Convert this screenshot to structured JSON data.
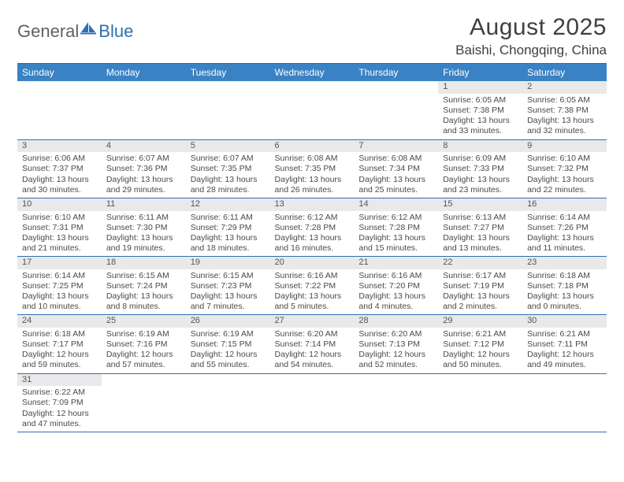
{
  "brand": {
    "part1": "General",
    "part2": "Blue"
  },
  "title": "August 2025",
  "location": "Baishi, Chongqing, China",
  "colors": {
    "header_bg": "#3a82c4",
    "header_border": "#2f6fb3",
    "daynum_bg": "#e9e9e9",
    "text": "#4a4a4a",
    "logo_gray": "#606060",
    "logo_blue": "#2f6fb3"
  },
  "dow": [
    "Sunday",
    "Monday",
    "Tuesday",
    "Wednesday",
    "Thursday",
    "Friday",
    "Saturday"
  ],
  "weeks": [
    [
      {
        "n": "",
        "l": [
          "",
          "",
          "",
          ""
        ]
      },
      {
        "n": "",
        "l": [
          "",
          "",
          "",
          ""
        ]
      },
      {
        "n": "",
        "l": [
          "",
          "",
          "",
          ""
        ]
      },
      {
        "n": "",
        "l": [
          "",
          "",
          "",
          ""
        ]
      },
      {
        "n": "",
        "l": [
          "",
          "",
          "",
          ""
        ]
      },
      {
        "n": "1",
        "l": [
          "Sunrise: 6:05 AM",
          "Sunset: 7:38 PM",
          "Daylight: 13 hours",
          "and 33 minutes."
        ]
      },
      {
        "n": "2",
        "l": [
          "Sunrise: 6:05 AM",
          "Sunset: 7:38 PM",
          "Daylight: 13 hours",
          "and 32 minutes."
        ]
      }
    ],
    [
      {
        "n": "3",
        "l": [
          "Sunrise: 6:06 AM",
          "Sunset: 7:37 PM",
          "Daylight: 13 hours",
          "and 30 minutes."
        ]
      },
      {
        "n": "4",
        "l": [
          "Sunrise: 6:07 AM",
          "Sunset: 7:36 PM",
          "Daylight: 13 hours",
          "and 29 minutes."
        ]
      },
      {
        "n": "5",
        "l": [
          "Sunrise: 6:07 AM",
          "Sunset: 7:35 PM",
          "Daylight: 13 hours",
          "and 28 minutes."
        ]
      },
      {
        "n": "6",
        "l": [
          "Sunrise: 6:08 AM",
          "Sunset: 7:35 PM",
          "Daylight: 13 hours",
          "and 26 minutes."
        ]
      },
      {
        "n": "7",
        "l": [
          "Sunrise: 6:08 AM",
          "Sunset: 7:34 PM",
          "Daylight: 13 hours",
          "and 25 minutes."
        ]
      },
      {
        "n": "8",
        "l": [
          "Sunrise: 6:09 AM",
          "Sunset: 7:33 PM",
          "Daylight: 13 hours",
          "and 23 minutes."
        ]
      },
      {
        "n": "9",
        "l": [
          "Sunrise: 6:10 AM",
          "Sunset: 7:32 PM",
          "Daylight: 13 hours",
          "and 22 minutes."
        ]
      }
    ],
    [
      {
        "n": "10",
        "l": [
          "Sunrise: 6:10 AM",
          "Sunset: 7:31 PM",
          "Daylight: 13 hours",
          "and 21 minutes."
        ]
      },
      {
        "n": "11",
        "l": [
          "Sunrise: 6:11 AM",
          "Sunset: 7:30 PM",
          "Daylight: 13 hours",
          "and 19 minutes."
        ]
      },
      {
        "n": "12",
        "l": [
          "Sunrise: 6:11 AM",
          "Sunset: 7:29 PM",
          "Daylight: 13 hours",
          "and 18 minutes."
        ]
      },
      {
        "n": "13",
        "l": [
          "Sunrise: 6:12 AM",
          "Sunset: 7:28 PM",
          "Daylight: 13 hours",
          "and 16 minutes."
        ]
      },
      {
        "n": "14",
        "l": [
          "Sunrise: 6:12 AM",
          "Sunset: 7:28 PM",
          "Daylight: 13 hours",
          "and 15 minutes."
        ]
      },
      {
        "n": "15",
        "l": [
          "Sunrise: 6:13 AM",
          "Sunset: 7:27 PM",
          "Daylight: 13 hours",
          "and 13 minutes."
        ]
      },
      {
        "n": "16",
        "l": [
          "Sunrise: 6:14 AM",
          "Sunset: 7:26 PM",
          "Daylight: 13 hours",
          "and 11 minutes."
        ]
      }
    ],
    [
      {
        "n": "17",
        "l": [
          "Sunrise: 6:14 AM",
          "Sunset: 7:25 PM",
          "Daylight: 13 hours",
          "and 10 minutes."
        ]
      },
      {
        "n": "18",
        "l": [
          "Sunrise: 6:15 AM",
          "Sunset: 7:24 PM",
          "Daylight: 13 hours",
          "and 8 minutes."
        ]
      },
      {
        "n": "19",
        "l": [
          "Sunrise: 6:15 AM",
          "Sunset: 7:23 PM",
          "Daylight: 13 hours",
          "and 7 minutes."
        ]
      },
      {
        "n": "20",
        "l": [
          "Sunrise: 6:16 AM",
          "Sunset: 7:22 PM",
          "Daylight: 13 hours",
          "and 5 minutes."
        ]
      },
      {
        "n": "21",
        "l": [
          "Sunrise: 6:16 AM",
          "Sunset: 7:20 PM",
          "Daylight: 13 hours",
          "and 4 minutes."
        ]
      },
      {
        "n": "22",
        "l": [
          "Sunrise: 6:17 AM",
          "Sunset: 7:19 PM",
          "Daylight: 13 hours",
          "and 2 minutes."
        ]
      },
      {
        "n": "23",
        "l": [
          "Sunrise: 6:18 AM",
          "Sunset: 7:18 PM",
          "Daylight: 13 hours",
          "and 0 minutes."
        ]
      }
    ],
    [
      {
        "n": "24",
        "l": [
          "Sunrise: 6:18 AM",
          "Sunset: 7:17 PM",
          "Daylight: 12 hours",
          "and 59 minutes."
        ]
      },
      {
        "n": "25",
        "l": [
          "Sunrise: 6:19 AM",
          "Sunset: 7:16 PM",
          "Daylight: 12 hours",
          "and 57 minutes."
        ]
      },
      {
        "n": "26",
        "l": [
          "Sunrise: 6:19 AM",
          "Sunset: 7:15 PM",
          "Daylight: 12 hours",
          "and 55 minutes."
        ]
      },
      {
        "n": "27",
        "l": [
          "Sunrise: 6:20 AM",
          "Sunset: 7:14 PM",
          "Daylight: 12 hours",
          "and 54 minutes."
        ]
      },
      {
        "n": "28",
        "l": [
          "Sunrise: 6:20 AM",
          "Sunset: 7:13 PM",
          "Daylight: 12 hours",
          "and 52 minutes."
        ]
      },
      {
        "n": "29",
        "l": [
          "Sunrise: 6:21 AM",
          "Sunset: 7:12 PM",
          "Daylight: 12 hours",
          "and 50 minutes."
        ]
      },
      {
        "n": "30",
        "l": [
          "Sunrise: 6:21 AM",
          "Sunset: 7:11 PM",
          "Daylight: 12 hours",
          "and 49 minutes."
        ]
      }
    ],
    [
      {
        "n": "31",
        "l": [
          "Sunrise: 6:22 AM",
          "Sunset: 7:09 PM",
          "Daylight: 12 hours",
          "and 47 minutes."
        ]
      },
      {
        "n": "",
        "l": [
          "",
          "",
          "",
          ""
        ]
      },
      {
        "n": "",
        "l": [
          "",
          "",
          "",
          ""
        ]
      },
      {
        "n": "",
        "l": [
          "",
          "",
          "",
          ""
        ]
      },
      {
        "n": "",
        "l": [
          "",
          "",
          "",
          ""
        ]
      },
      {
        "n": "",
        "l": [
          "",
          "",
          "",
          ""
        ]
      },
      {
        "n": "",
        "l": [
          "",
          "",
          "",
          ""
        ]
      }
    ]
  ]
}
